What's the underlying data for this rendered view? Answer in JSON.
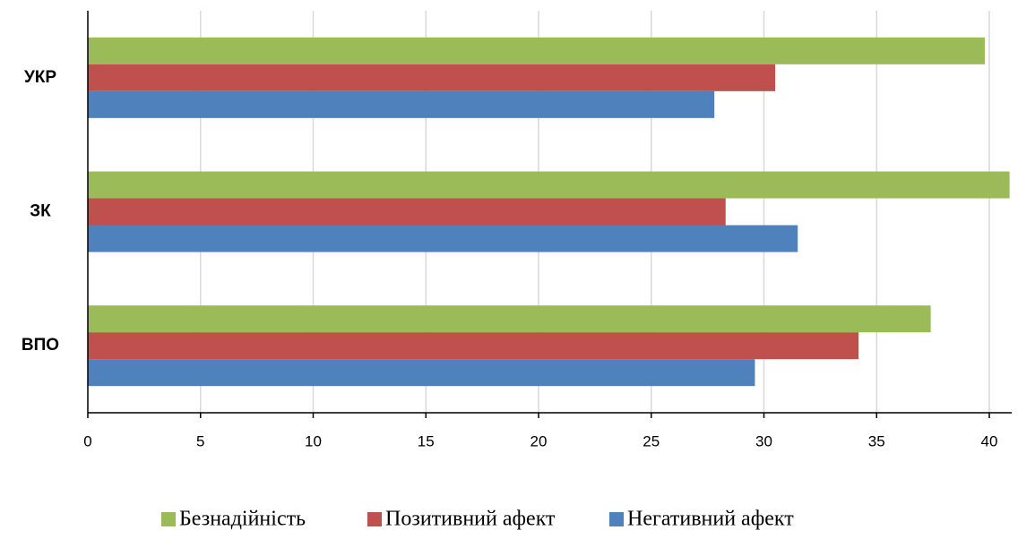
{
  "chart_data": {
    "type": "bar",
    "orientation": "horizontal",
    "categories": [
      "УКР",
      "ЗК",
      "ВПО"
    ],
    "series": [
      {
        "name": "Безнадійність",
        "color": "#9bbb59",
        "values": [
          39.8,
          40.9,
          37.4
        ]
      },
      {
        "name": "Позитивний афект",
        "color": "#c0504d",
        "values": [
          30.5,
          28.3,
          34.2
        ]
      },
      {
        "name": "Негативний афект",
        "color": "#4f81bd",
        "values": [
          27.8,
          31.5,
          29.6
        ]
      }
    ],
    "xlim": [
      0,
      41
    ],
    "xticks": [
      0,
      5,
      10,
      15,
      20,
      25,
      30,
      35,
      40
    ],
    "grid": true,
    "legend": "bottom"
  }
}
